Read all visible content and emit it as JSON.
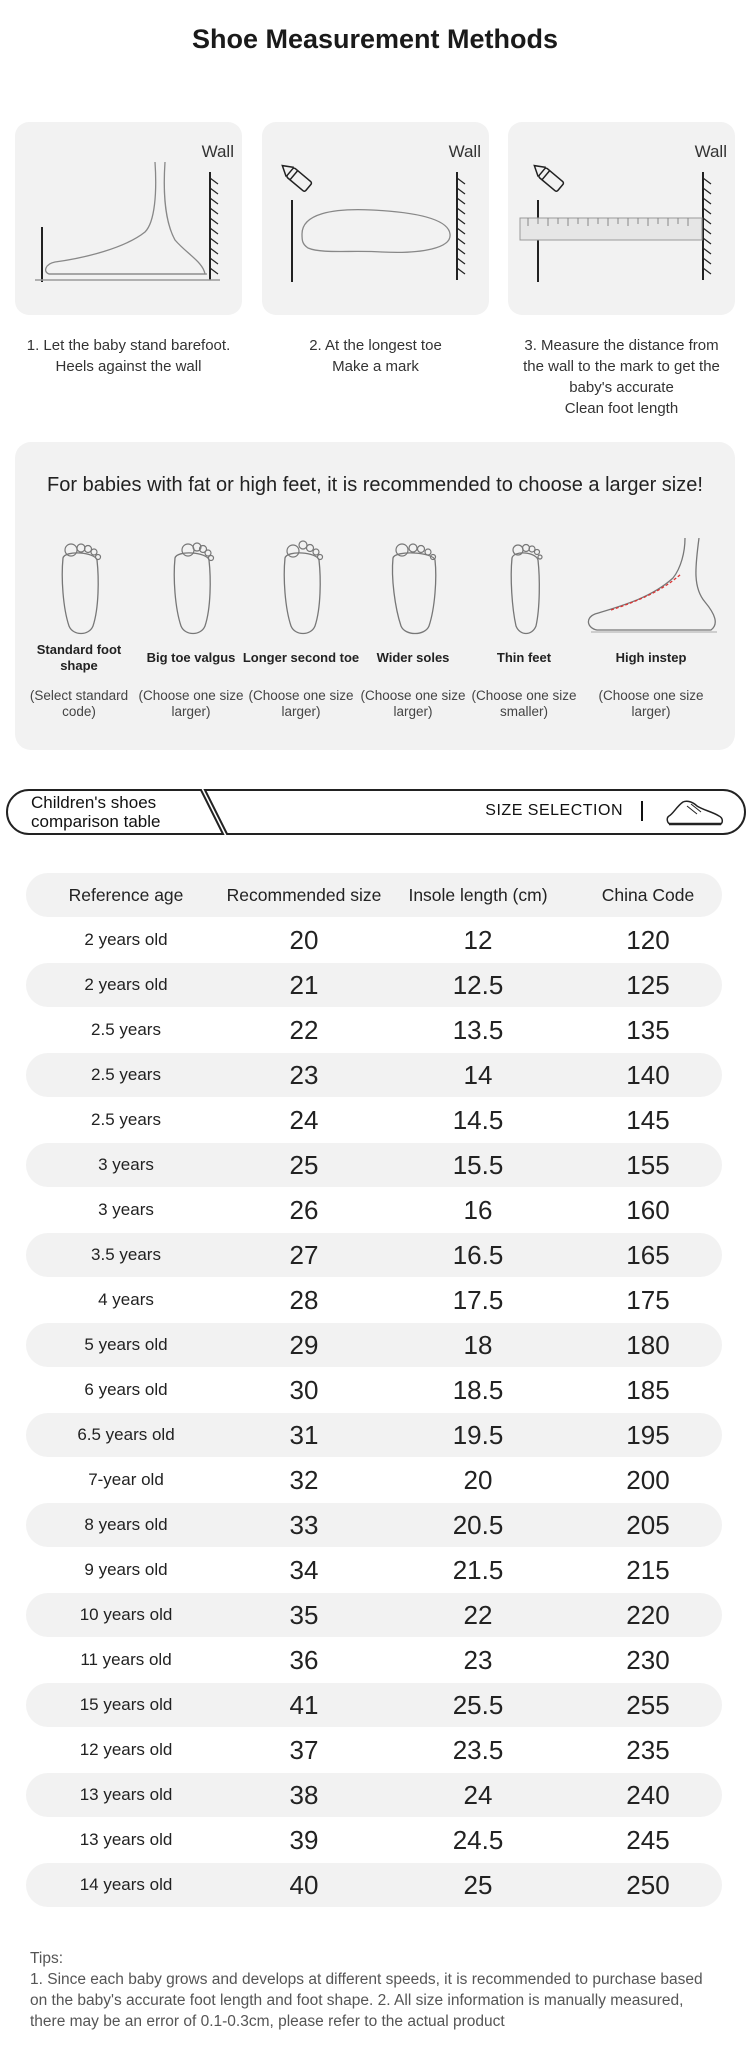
{
  "title": "Shoe Measurement Methods",
  "steps": [
    {
      "wall": "Wall",
      "lines": [
        "1. Let the baby stand barefoot.",
        "Heels against the wall"
      ]
    },
    {
      "wall": "Wall",
      "lines": [
        "2. At the longest toe",
        "Make a mark"
      ]
    },
    {
      "wall": "Wall",
      "lines": [
        "3. Measure the distance from",
        "the wall to the mark to get the",
        "baby's accurate",
        "Clean foot length"
      ]
    }
  ],
  "foot_shapes": {
    "heading": "For babies with fat or high feet, it is recommended to choose a larger size!",
    "items": [
      {
        "name": "Standard foot shape",
        "note": "(Select standard code)",
        "icon": "standard-foot-icon"
      },
      {
        "name": "Big toe valgus",
        "note": "(Choose one size larger)",
        "icon": "big-toe-valgus-foot-icon"
      },
      {
        "name": "Longer second toe",
        "note": "(Choose one size larger)",
        "icon": "long-second-toe-foot-icon"
      },
      {
        "name": "Wider soles",
        "note": "(Choose one size larger)",
        "icon": "wide-sole-foot-icon"
      },
      {
        "name": "Thin feet",
        "note": "(Choose one size smaller)",
        "icon": "thin-foot-icon"
      },
      {
        "name": "High instep",
        "note": "(Choose one size larger)",
        "icon": "high-instep-foot-icon"
      }
    ]
  },
  "banner": {
    "left_label": "Children's shoes comparison table",
    "right_label": "SIZE SELECTION",
    "icon": "shoe-icon"
  },
  "size_table": {
    "headers": [
      "Reference age",
      "Recommended size",
      "Insole length (cm)",
      "China Code"
    ],
    "rows": [
      [
        "2 years old",
        "20",
        "12",
        "120"
      ],
      [
        "2 years old",
        "21",
        "12.5",
        "125"
      ],
      [
        "2.5 years",
        "22",
        "13.5",
        "135"
      ],
      [
        "2.5 years",
        "23",
        "14",
        "140"
      ],
      [
        "2.5 years",
        "24",
        "14.5",
        "145"
      ],
      [
        "3 years",
        "25",
        "15.5",
        "155"
      ],
      [
        "3 years",
        "26",
        "16",
        "160"
      ],
      [
        "3.5 years",
        "27",
        "16.5",
        "165"
      ],
      [
        "4 years",
        "28",
        "17.5",
        "175"
      ],
      [
        "5 years old",
        "29",
        "18",
        "180"
      ],
      [
        "6 years old",
        "30",
        "18.5",
        "185"
      ],
      [
        "6.5 years old",
        "31",
        "19.5",
        "195"
      ],
      [
        "7-year old",
        "32",
        "20",
        "200"
      ],
      [
        "8 years old",
        "33",
        "20.5",
        "205"
      ],
      [
        "9 years old",
        "34",
        "21.5",
        "215"
      ],
      [
        "10 years old",
        "35",
        "22",
        "220"
      ],
      [
        "11 years old",
        "36",
        "23",
        "230"
      ],
      [
        "15 years old",
        "41",
        "25.5",
        "255"
      ],
      [
        "12 years old",
        "37",
        "23.5",
        "235"
      ],
      [
        "13 years old",
        "38",
        "24",
        "240"
      ],
      [
        "13 years old",
        "39",
        "24.5",
        "245"
      ],
      [
        "14 years old",
        "40",
        "25",
        "250"
      ]
    ]
  },
  "tips": {
    "label": "Tips:",
    "text": "1. Since each baby grows and develops at different speeds, it is recommended to purchase based on the baby's accurate foot length and foot shape. 2. All size information is manually measured, there may be an error of 0.1-0.3cm, please refer to the actual product"
  }
}
